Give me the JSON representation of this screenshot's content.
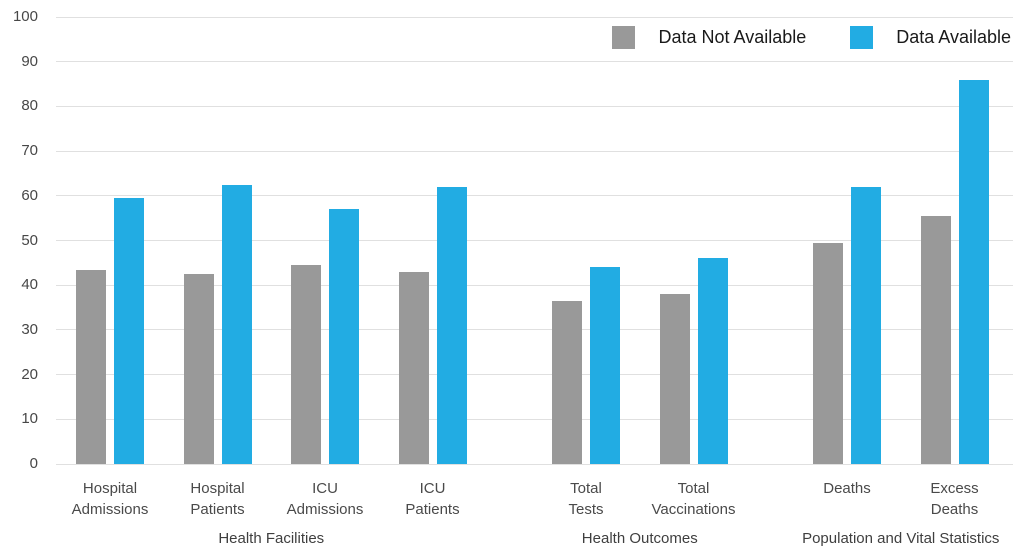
{
  "colors": {
    "available": "#22ACE3",
    "not_available": "#999999",
    "gridline": "#E0E0E0",
    "tick_text": "#474747",
    "category_text": "#4A4A4A",
    "group_text": "#3F3F3F",
    "legend_text": "#1A1A1A",
    "background": "#FFFFFF"
  },
  "chart_data": {
    "type": "bar",
    "title": "",
    "xlabel": "",
    "ylabel": "",
    "ylim": [
      0,
      100
    ],
    "yticks": [
      0,
      10,
      20,
      30,
      40,
      50,
      60,
      70,
      80,
      90,
      100
    ],
    "grid": true,
    "legend_position": "top-right",
    "series_names": [
      "Data Not Available",
      "Data Available"
    ],
    "groups": [
      {
        "label": "Health Facilities",
        "categories": [
          {
            "label": "Hospital Admissions",
            "values": [
              43.5,
              59.5
            ]
          },
          {
            "label": "Hospital Patients",
            "values": [
              42.5,
              62.5
            ]
          },
          {
            "label": "ICU Admissions",
            "values": [
              44.5,
              57
            ]
          },
          {
            "label": "ICU Patients",
            "values": [
              43,
              62
            ]
          }
        ]
      },
      {
        "label": "Health Outcomes",
        "categories": [
          {
            "label": "Total Tests",
            "values": [
              36.5,
              44
            ]
          },
          {
            "label": "Total Vaccinations",
            "values": [
              38,
              46
            ]
          }
        ]
      },
      {
        "label": "Population and Vital Statistics",
        "categories": [
          {
            "label": "Deaths",
            "values": [
              49.5,
              62
            ]
          },
          {
            "label": "Excess Deaths",
            "values": [
              55.5,
              86
            ]
          }
        ]
      }
    ]
  }
}
